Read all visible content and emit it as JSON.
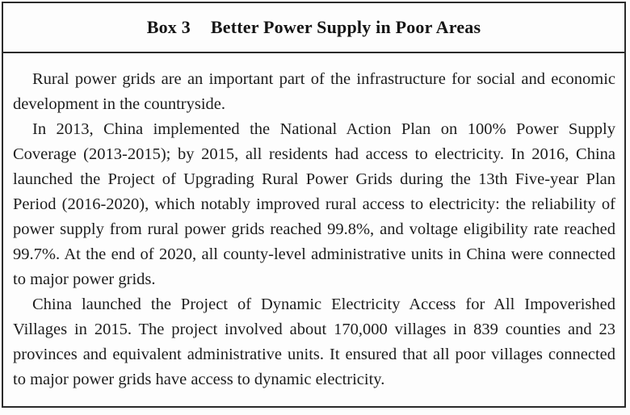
{
  "box": {
    "label": "Box 3",
    "title": "Better Power Supply in Poor Areas",
    "paragraphs": [
      "Rural power grids are an important part of the infrastructure for social and economic development in the countryside.",
      "In 2013, China implemented the National Action Plan on 100% Power Supply Coverage (2013-2015); by 2015, all residents had access to electricity. In 2016, China launched the Project of Upgrading Rural Power Grids during the 13th Five-year Plan Period (2016-2020), which notably improved rural access to electricity: the reliability of power supply from rural power grids reached 99.8%, and voltage eligibility rate reached 99.7%. At the end of 2020, all county-level administrative units in China were connected to major power grids.",
      "China launched the Project of Dynamic Electricity Access for All Impoverished Villages in 2015. The project involved about 170,000 villages in 839 counties and 23 provinces and equivalent administrative units. It ensured that all poor villages connected to major power grids have access to dynamic electricity."
    ],
    "colors": {
      "border": "#2b2b2b",
      "text": "#1d1d1d",
      "background": "#fdfdfd"
    }
  }
}
